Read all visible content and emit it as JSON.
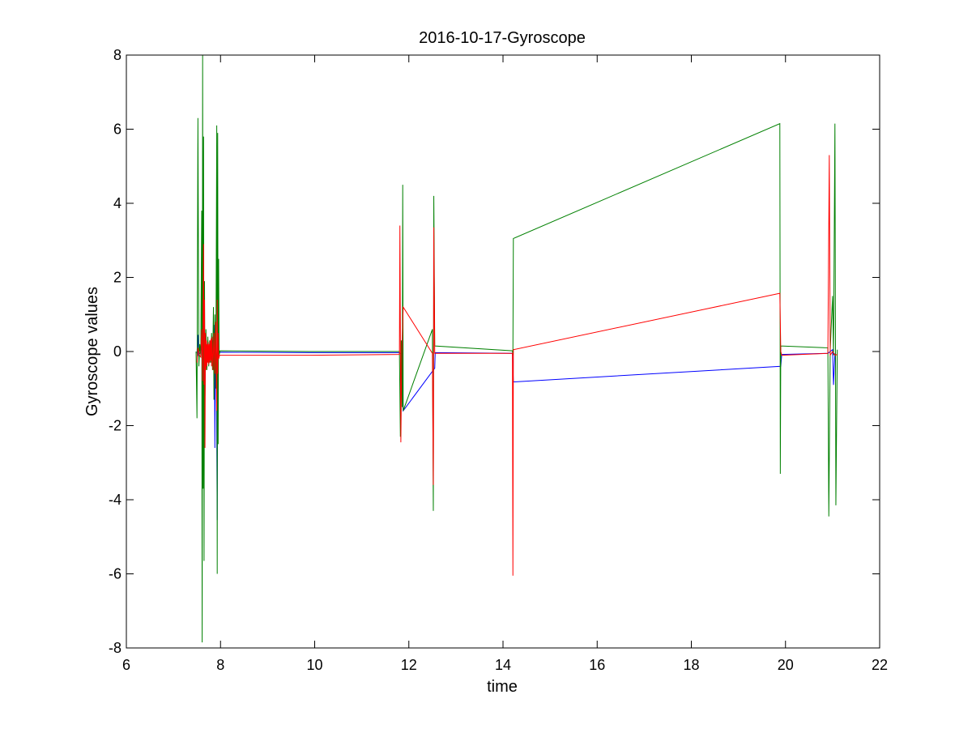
{
  "chart_data": {
    "type": "line",
    "title": "2016-10-17-Gyroscope",
    "xlabel": "time",
    "ylabel": "Gyroscope values",
    "xlim": [
      6,
      22
    ],
    "ylim": [
      -8,
      8
    ],
    "xticks": [
      6,
      8,
      10,
      12,
      14,
      16,
      18,
      20,
      22
    ],
    "yticks": [
      -8,
      -6,
      -4,
      -2,
      0,
      2,
      4,
      6,
      8
    ],
    "grid": false,
    "legend": "none",
    "series": [
      {
        "color": "#0000ff",
        "points": [
          [
            7.5,
            -0.05
          ],
          [
            7.52,
            0.45
          ],
          [
            7.53,
            -0.1
          ],
          [
            7.58,
            -0.02
          ],
          [
            7.6,
            0.2
          ],
          [
            7.61,
            -0.2
          ],
          [
            7.64,
            0.15
          ],
          [
            7.66,
            -0.15
          ],
          [
            7.68,
            0.1
          ],
          [
            7.7,
            -0.1
          ],
          [
            7.72,
            0.05
          ],
          [
            7.75,
            -0.05
          ],
          [
            7.78,
            0.08
          ],
          [
            7.8,
            -0.05
          ],
          [
            7.83,
            0.3
          ],
          [
            7.85,
            -0.3
          ],
          [
            7.87,
            0.72
          ],
          [
            7.88,
            -2.6
          ],
          [
            7.89,
            0.1
          ],
          [
            7.91,
            -0.1
          ],
          [
            7.93,
            -4.55
          ],
          [
            7.94,
            0.1
          ],
          [
            7.96,
            -0.05
          ],
          [
            7.98,
            -0.02
          ],
          [
            9.9,
            -0.03
          ],
          [
            11.8,
            -0.03
          ],
          [
            11.85,
            -0.08
          ],
          [
            11.88,
            -1.6
          ],
          [
            12.55,
            -0.45
          ],
          [
            12.56,
            -0.03
          ],
          [
            14.2,
            -0.05
          ],
          [
            14.22,
            -0.82
          ],
          [
            19.9,
            -0.4
          ],
          [
            19.92,
            -0.08
          ],
          [
            20.9,
            -0.05
          ],
          [
            21.0,
            0.05
          ],
          [
            21.02,
            -0.9
          ],
          [
            21.05,
            -0.05
          ]
        ]
      },
      {
        "color": "#008000",
        "points": [
          [
            7.48,
            0.0
          ],
          [
            7.5,
            -1.8
          ],
          [
            7.52,
            6.3
          ],
          [
            7.54,
            -0.4
          ],
          [
            7.56,
            0.2
          ],
          [
            7.58,
            -0.1
          ],
          [
            7.6,
            3.8
          ],
          [
            7.61,
            -7.85
          ],
          [
            7.62,
            8.0
          ],
          [
            7.63,
            -3.7
          ],
          [
            7.64,
            5.8
          ],
          [
            7.65,
            -5.65
          ],
          [
            7.66,
            1.9
          ],
          [
            7.67,
            -1.2
          ],
          [
            7.69,
            0.6
          ],
          [
            7.71,
            -0.5
          ],
          [
            7.73,
            0.4
          ],
          [
            7.75,
            -0.4
          ],
          [
            7.77,
            0.3
          ],
          [
            7.79,
            -0.3
          ],
          [
            7.81,
            0.5
          ],
          [
            7.83,
            -0.5
          ],
          [
            7.85,
            1.2
          ],
          [
            7.86,
            -1.3
          ],
          [
            7.88,
            1.0
          ],
          [
            7.9,
            -1.0
          ],
          [
            7.92,
            6.1
          ],
          [
            7.93,
            -6.0
          ],
          [
            7.94,
            5.9
          ],
          [
            7.95,
            -2.5
          ],
          [
            7.96,
            2.5
          ],
          [
            7.97,
            -0.1
          ],
          [
            7.99,
            0.02
          ],
          [
            9.9,
            0.0
          ],
          [
            11.8,
            0.0
          ],
          [
            11.82,
            -2.3
          ],
          [
            11.84,
            0.3
          ],
          [
            11.86,
            -1.5
          ],
          [
            11.87,
            4.5
          ],
          [
            11.88,
            -1.6
          ],
          [
            12.5,
            0.6
          ],
          [
            12.52,
            -4.3
          ],
          [
            12.53,
            4.2
          ],
          [
            12.55,
            0.15
          ],
          [
            14.2,
            0.02
          ],
          [
            14.21,
            -0.1
          ],
          [
            14.22,
            3.05
          ],
          [
            19.88,
            6.15
          ],
          [
            19.89,
            -3.3
          ],
          [
            19.9,
            0.15
          ],
          [
            20.9,
            0.1
          ],
          [
            20.92,
            -4.45
          ],
          [
            20.95,
            0.05
          ],
          [
            21.0,
            1.5
          ],
          [
            21.02,
            -0.1
          ],
          [
            21.05,
            6.15
          ],
          [
            21.07,
            -4.15
          ],
          [
            21.1,
            0.05
          ]
        ]
      },
      {
        "color": "#ff0000",
        "points": [
          [
            7.5,
            -0.3
          ],
          [
            7.52,
            0.1
          ],
          [
            7.55,
            -0.1
          ],
          [
            7.58,
            -0.15
          ],
          [
            7.6,
            0.6
          ],
          [
            7.62,
            -0.8
          ],
          [
            7.64,
            2.9
          ],
          [
            7.65,
            -0.9
          ],
          [
            7.66,
            1.4
          ],
          [
            7.67,
            -2.6
          ],
          [
            7.68,
            0.5
          ],
          [
            7.69,
            -0.5
          ],
          [
            7.7,
            0.3
          ],
          [
            7.71,
            -0.4
          ],
          [
            7.72,
            0.2
          ],
          [
            7.73,
            -0.3
          ],
          [
            7.74,
            0.25
          ],
          [
            7.75,
            -0.35
          ],
          [
            7.76,
            0.2
          ],
          [
            7.77,
            -0.3
          ],
          [
            7.78,
            0.3
          ],
          [
            7.79,
            -0.25
          ],
          [
            7.8,
            0.35
          ],
          [
            7.81,
            -0.4
          ],
          [
            7.82,
            0.4
          ],
          [
            7.84,
            -0.5
          ],
          [
            7.86,
            0.5
          ],
          [
            7.88,
            -0.6
          ],
          [
            7.9,
            0.8
          ],
          [
            7.92,
            -1.6
          ],
          [
            7.93,
            1.4
          ],
          [
            7.94,
            -0.6
          ],
          [
            7.95,
            0.5
          ],
          [
            7.96,
            -0.2
          ],
          [
            7.98,
            -0.1
          ],
          [
            9.9,
            -0.1
          ],
          [
            11.8,
            -0.08
          ],
          [
            11.81,
            3.4
          ],
          [
            11.83,
            -2.45
          ],
          [
            11.85,
            -0.05
          ],
          [
            11.88,
            1.2
          ],
          [
            12.5,
            -0.05
          ],
          [
            12.52,
            -3.6
          ],
          [
            12.53,
            3.35
          ],
          [
            12.55,
            -0.05
          ],
          [
            14.2,
            -0.05
          ],
          [
            14.21,
            -6.05
          ],
          [
            14.22,
            0.05
          ],
          [
            19.88,
            1.57
          ],
          [
            19.9,
            0.0
          ],
          [
            19.92,
            -0.1
          ],
          [
            20.9,
            -0.05
          ],
          [
            20.93,
            5.3
          ],
          [
            20.95,
            -0.1
          ],
          [
            21.0,
            0.0
          ],
          [
            21.05,
            -0.1
          ],
          [
            21.1,
            -0.08
          ]
        ]
      }
    ]
  }
}
